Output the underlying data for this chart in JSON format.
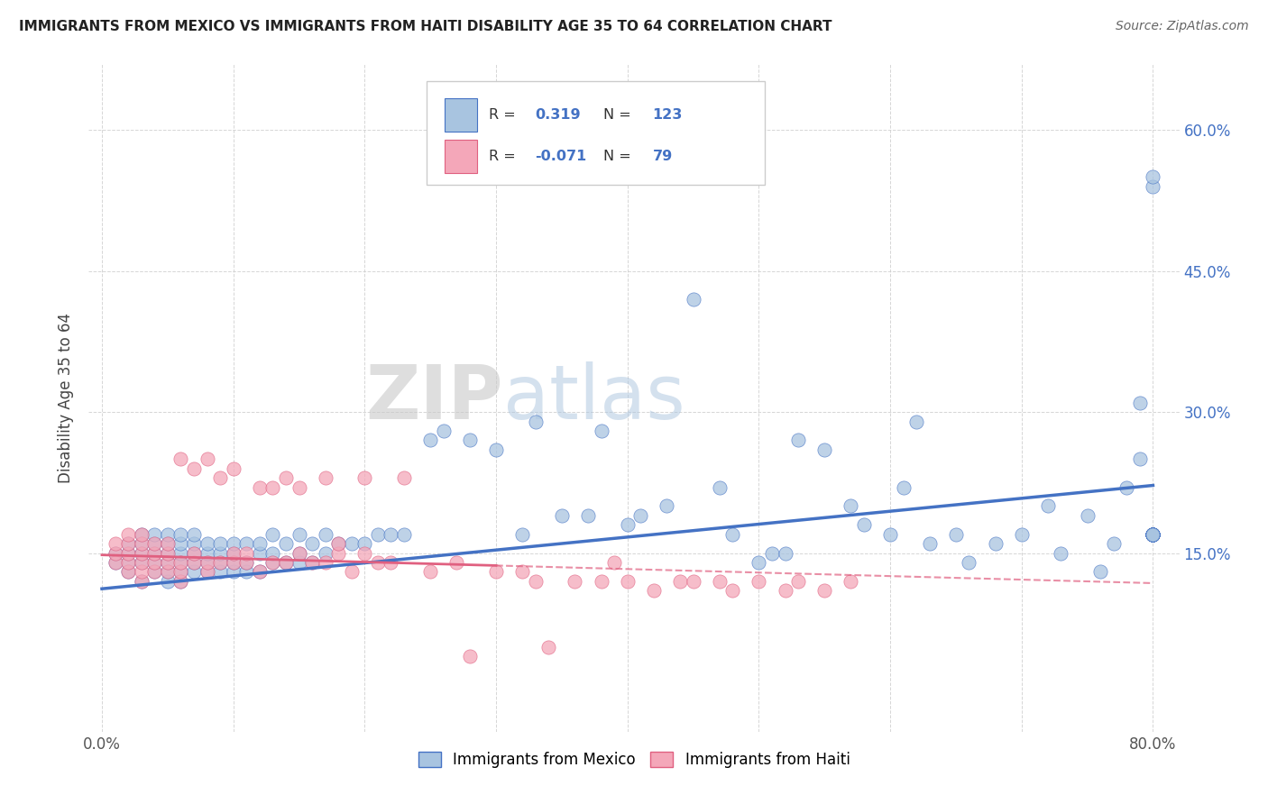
{
  "title": "IMMIGRANTS FROM MEXICO VS IMMIGRANTS FROM HAITI DISABILITY AGE 35 TO 64 CORRELATION CHART",
  "source": "Source: ZipAtlas.com",
  "ylabel": "Disability Age 35 to 64",
  "xlim": [
    -0.01,
    0.82
  ],
  "ylim": [
    -0.04,
    0.67
  ],
  "x_tick_positions": [
    0.0,
    0.1,
    0.2,
    0.3,
    0.4,
    0.5,
    0.6,
    0.7,
    0.8
  ],
  "x_tick_labels": [
    "0.0%",
    "",
    "",
    "",
    "",
    "",
    "",
    "",
    "80.0%"
  ],
  "y_tick_positions": [
    0.15,
    0.3,
    0.45,
    0.6
  ],
  "y_tick_labels_right": [
    "15.0%",
    "30.0%",
    "45.0%",
    "60.0%"
  ],
  "mexico_color": "#a8c4e0",
  "mexico_line_color": "#4472c4",
  "haiti_color": "#f4a7b9",
  "haiti_line_color": "#e06080",
  "R_mexico": 0.319,
  "N_mexico": 123,
  "R_haiti": -0.071,
  "N_haiti": 79,
  "legend_mexico": "Immigrants from Mexico",
  "legend_haiti": "Immigrants from Haiti",
  "background_color": "#ffffff",
  "watermark_zip": "ZIP",
  "watermark_atlas": "atlas",
  "mexico_x": [
    0.01,
    0.01,
    0.02,
    0.02,
    0.02,
    0.02,
    0.03,
    0.03,
    0.03,
    0.03,
    0.03,
    0.04,
    0.04,
    0.04,
    0.04,
    0.04,
    0.05,
    0.05,
    0.05,
    0.05,
    0.05,
    0.05,
    0.06,
    0.06,
    0.06,
    0.06,
    0.06,
    0.06,
    0.07,
    0.07,
    0.07,
    0.07,
    0.07,
    0.08,
    0.08,
    0.08,
    0.08,
    0.09,
    0.09,
    0.09,
    0.09,
    0.1,
    0.1,
    0.1,
    0.1,
    0.11,
    0.11,
    0.11,
    0.12,
    0.12,
    0.12,
    0.13,
    0.13,
    0.13,
    0.14,
    0.14,
    0.15,
    0.15,
    0.15,
    0.16,
    0.16,
    0.17,
    0.17,
    0.18,
    0.19,
    0.2,
    0.21,
    0.22,
    0.23,
    0.25,
    0.26,
    0.28,
    0.3,
    0.32,
    0.33,
    0.35,
    0.37,
    0.38,
    0.4,
    0.41,
    0.43,
    0.45,
    0.47,
    0.48,
    0.5,
    0.51,
    0.52,
    0.53,
    0.55,
    0.57,
    0.58,
    0.6,
    0.61,
    0.62,
    0.63,
    0.65,
    0.66,
    0.68,
    0.7,
    0.72,
    0.73,
    0.75,
    0.76,
    0.77,
    0.78,
    0.79,
    0.79,
    0.8,
    0.8,
    0.8,
    0.8,
    0.8,
    0.8,
    0.8,
    0.8,
    0.8,
    0.8,
    0.8,
    0.8,
    0.8,
    0.8,
    0.8,
    0.8,
    0.8
  ],
  "mexico_y": [
    0.14,
    0.15,
    0.13,
    0.14,
    0.15,
    0.16,
    0.12,
    0.14,
    0.15,
    0.16,
    0.17,
    0.13,
    0.14,
    0.15,
    0.16,
    0.17,
    0.12,
    0.13,
    0.14,
    0.15,
    0.16,
    0.17,
    0.12,
    0.13,
    0.14,
    0.15,
    0.16,
    0.17,
    0.13,
    0.14,
    0.15,
    0.16,
    0.17,
    0.13,
    0.14,
    0.15,
    0.16,
    0.13,
    0.14,
    0.15,
    0.16,
    0.13,
    0.14,
    0.15,
    0.16,
    0.13,
    0.14,
    0.16,
    0.13,
    0.15,
    0.16,
    0.14,
    0.15,
    0.17,
    0.14,
    0.16,
    0.14,
    0.15,
    0.17,
    0.14,
    0.16,
    0.15,
    0.17,
    0.16,
    0.16,
    0.16,
    0.17,
    0.17,
    0.17,
    0.27,
    0.28,
    0.27,
    0.26,
    0.17,
    0.29,
    0.19,
    0.19,
    0.28,
    0.18,
    0.19,
    0.2,
    0.42,
    0.22,
    0.17,
    0.14,
    0.15,
    0.15,
    0.27,
    0.26,
    0.2,
    0.18,
    0.17,
    0.22,
    0.29,
    0.16,
    0.17,
    0.14,
    0.16,
    0.17,
    0.2,
    0.15,
    0.19,
    0.13,
    0.16,
    0.22,
    0.25,
    0.31,
    0.17,
    0.17,
    0.17,
    0.17,
    0.17,
    0.17,
    0.17,
    0.17,
    0.17,
    0.17,
    0.17,
    0.17,
    0.17,
    0.17,
    0.17,
    0.54,
    0.55
  ],
  "haiti_x": [
    0.01,
    0.01,
    0.01,
    0.02,
    0.02,
    0.02,
    0.02,
    0.02,
    0.03,
    0.03,
    0.03,
    0.03,
    0.03,
    0.03,
    0.04,
    0.04,
    0.04,
    0.04,
    0.05,
    0.05,
    0.05,
    0.05,
    0.06,
    0.06,
    0.06,
    0.06,
    0.07,
    0.07,
    0.07,
    0.08,
    0.08,
    0.08,
    0.09,
    0.09,
    0.1,
    0.1,
    0.1,
    0.11,
    0.11,
    0.12,
    0.12,
    0.13,
    0.13,
    0.14,
    0.14,
    0.15,
    0.15,
    0.16,
    0.17,
    0.17,
    0.18,
    0.18,
    0.19,
    0.2,
    0.2,
    0.21,
    0.22,
    0.23,
    0.25,
    0.27,
    0.28,
    0.3,
    0.32,
    0.33,
    0.34,
    0.36,
    0.38,
    0.39,
    0.4,
    0.42,
    0.44,
    0.45,
    0.47,
    0.48,
    0.5,
    0.52,
    0.53,
    0.55,
    0.57
  ],
  "haiti_y": [
    0.14,
    0.15,
    0.16,
    0.13,
    0.14,
    0.15,
    0.16,
    0.17,
    0.12,
    0.13,
    0.14,
    0.15,
    0.16,
    0.17,
    0.13,
    0.14,
    0.15,
    0.16,
    0.13,
    0.14,
    0.15,
    0.16,
    0.12,
    0.13,
    0.14,
    0.25,
    0.14,
    0.15,
    0.24,
    0.13,
    0.14,
    0.25,
    0.14,
    0.23,
    0.14,
    0.15,
    0.24,
    0.14,
    0.15,
    0.13,
    0.22,
    0.14,
    0.22,
    0.14,
    0.23,
    0.15,
    0.22,
    0.14,
    0.14,
    0.23,
    0.15,
    0.16,
    0.13,
    0.15,
    0.23,
    0.14,
    0.14,
    0.23,
    0.13,
    0.14,
    0.04,
    0.13,
    0.13,
    0.12,
    0.05,
    0.12,
    0.12,
    0.14,
    0.12,
    0.11,
    0.12,
    0.12,
    0.12,
    0.11,
    0.12,
    0.11,
    0.12,
    0.11,
    0.12
  ],
  "mex_line_x0": 0.0,
  "mex_line_x1": 0.8,
  "mex_line_y0": 0.112,
  "mex_line_y1": 0.222,
  "haiti_line_x0": 0.0,
  "haiti_line_x1": 0.8,
  "haiti_line_y0": 0.148,
  "haiti_line_y1": 0.118
}
